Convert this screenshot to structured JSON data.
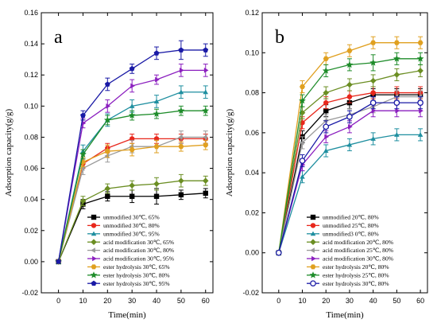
{
  "chart_data": [
    {
      "type": "line",
      "panel_label": "a",
      "xlabel": "Time(min)",
      "ylabel": "Adsorption capacity(g/g)",
      "xlim": [
        -7,
        63
      ],
      "ylim": [
        -0.02,
        0.16
      ],
      "xticks": [
        0,
        10,
        20,
        30,
        40,
        50,
        60
      ],
      "yticks": [
        -0.02,
        0.0,
        0.02,
        0.04,
        0.06,
        0.08,
        0.1,
        0.12,
        0.14,
        0.16
      ],
      "ytick_labels": [
        "-0.02",
        "0.00",
        "0.02",
        "0.04",
        "0.06",
        "0.08",
        "0.10",
        "0.12",
        "0.14",
        "0.16"
      ],
      "x": [
        0,
        10,
        20,
        30,
        40,
        50,
        60
      ],
      "legend_position": "bottom-center",
      "error_bars": true,
      "series": [
        {
          "name": "unmodified 30℃, 65%",
          "color": "#000000",
          "marker": "square",
          "values": [
            0.0,
            0.037,
            0.042,
            0.042,
            0.042,
            0.043,
            0.044
          ],
          "errors": [
            0,
            0.003,
            0.003,
            0.004,
            0.005,
            0.003,
            0.003
          ]
        },
        {
          "name": "unmodified 30℃, 80%",
          "color": "#e8271c",
          "marker": "circle",
          "values": [
            0.0,
            0.063,
            0.073,
            0.079,
            0.079,
            0.079,
            0.079
          ],
          "errors": [
            0,
            0.003,
            0.003,
            0.003,
            0.003,
            0.003,
            0.003
          ]
        },
        {
          "name": "unmodified 30℃, 95%",
          "color": "#1f8fa0",
          "marker": "triangle",
          "values": [
            0.0,
            0.071,
            0.091,
            0.1,
            0.103,
            0.109,
            0.109
          ],
          "errors": [
            0,
            0.004,
            0.004,
            0.004,
            0.004,
            0.004,
            0.004
          ]
        },
        {
          "name": "acid modification 30℃, 65%",
          "color": "#6b8e23",
          "marker": "diamond",
          "values": [
            0.0,
            0.039,
            0.047,
            0.049,
            0.05,
            0.052,
            0.052
          ],
          "errors": [
            0,
            0.003,
            0.003,
            0.003,
            0.004,
            0.004,
            0.003
          ]
        },
        {
          "name": "acid modification 30℃, 80%",
          "color": "#9a9a9a",
          "marker": "triangle-left",
          "values": [
            0.0,
            0.06,
            0.068,
            0.074,
            0.074,
            0.08,
            0.08
          ],
          "errors": [
            0,
            0.004,
            0.004,
            0.004,
            0.004,
            0.004,
            0.004
          ]
        },
        {
          "name": "acid modification 30℃, 95%",
          "color": "#8b1fbf",
          "marker": "triangle-right",
          "values": [
            0.0,
            0.089,
            0.1,
            0.113,
            0.117,
            0.123,
            0.123
          ],
          "errors": [
            0,
            0.003,
            0.004,
            0.004,
            0.003,
            0.004,
            0.004
          ]
        },
        {
          "name": "ester hydrolysis 30℃, 65%",
          "color": "#e0a020",
          "marker": "hexagon",
          "values": [
            0.0,
            0.064,
            0.071,
            0.072,
            0.074,
            0.074,
            0.075
          ],
          "errors": [
            0,
            0.003,
            0.004,
            0.004,
            0.004,
            0.003,
            0.003
          ]
        },
        {
          "name": "ester hydrolysis 30℃, 80%",
          "color": "#1e8c2a",
          "marker": "star",
          "values": [
            0.0,
            0.069,
            0.091,
            0.094,
            0.095,
            0.097,
            0.097
          ],
          "errors": [
            0,
            0.003,
            0.003,
            0.003,
            0.003,
            0.003,
            0.003
          ]
        },
        {
          "name": "ester hydrolysis 30℃, 95%",
          "color": "#1a1aa6",
          "marker": "pentagon",
          "values": [
            0.0,
            0.094,
            0.114,
            0.124,
            0.134,
            0.136,
            0.136
          ],
          "errors": [
            0,
            0.003,
            0.004,
            0.003,
            0.004,
            0.006,
            0.004
          ]
        }
      ]
    },
    {
      "type": "line",
      "panel_label": "b",
      "xlabel": "Time(min)",
      "ylabel": "Adsorption capacity(g/g)",
      "xlim": [
        -7,
        63
      ],
      "ylim": [
        -0.02,
        0.12
      ],
      "xticks": [
        0,
        10,
        20,
        30,
        40,
        50,
        60
      ],
      "yticks": [
        -0.02,
        0.0,
        0.02,
        0.04,
        0.06,
        0.08,
        0.1,
        0.12
      ],
      "ytick_labels": [
        "-0.02",
        "0.00",
        "0.02",
        "0.04",
        "0.06",
        "0.08",
        "0.10",
        "0.12"
      ],
      "x": [
        0,
        10,
        20,
        30,
        40,
        50,
        60
      ],
      "legend_position": "bottom-center",
      "error_bars": true,
      "series": [
        {
          "name": "unmodified 20℃, 80%",
          "color": "#000000",
          "marker": "square",
          "values": [
            0.0,
            0.058,
            0.071,
            0.075,
            0.079,
            0.079,
            0.079
          ],
          "errors": [
            0,
            0.003,
            0.003,
            0.003,
            0.003,
            0.003,
            0.003
          ]
        },
        {
          "name": "unmodified 25℃, 80%",
          "color": "#e8271c",
          "marker": "circle",
          "values": [
            0.0,
            0.065,
            0.075,
            0.078,
            0.08,
            0.08,
            0.08
          ],
          "errors": [
            0,
            0.003,
            0.003,
            0.003,
            0.003,
            0.003,
            0.003
          ]
        },
        {
          "name": "unmodified3 0℃, 80%",
          "color": "#1f8fa0",
          "marker": "triangle",
          "values": [
            0.0,
            0.038,
            0.051,
            0.054,
            0.057,
            0.059,
            0.059
          ],
          "errors": [
            0,
            0.003,
            0.003,
            0.003,
            0.003,
            0.003,
            0.003
          ]
        },
        {
          "name": "acid modification 20℃, 80%",
          "color": "#6b8e23",
          "marker": "diamond",
          "values": [
            0.0,
            0.07,
            0.08,
            0.084,
            0.086,
            0.089,
            0.091
          ],
          "errors": [
            0,
            0.003,
            0.003,
            0.003,
            0.003,
            0.003,
            0.003
          ]
        },
        {
          "name": "acid modification 25℃, 80%",
          "color": "#9a9a9a",
          "marker": "triangle-left",
          "values": [
            0.0,
            0.055,
            0.066,
            0.069,
            0.073,
            0.078,
            0.078
          ],
          "errors": [
            0,
            0.003,
            0.003,
            0.003,
            0.003,
            0.003,
            0.003
          ]
        },
        {
          "name": "acid modification 30℃, 80%",
          "color": "#8b1fbf",
          "marker": "triangle-right",
          "values": [
            0.0,
            0.044,
            0.058,
            0.063,
            0.071,
            0.071,
            0.071
          ],
          "errors": [
            0,
            0.003,
            0.003,
            0.003,
            0.003,
            0.003,
            0.003
          ]
        },
        {
          "name": "ester hydrolysis 20℃, 80%",
          "color": "#e0a020",
          "marker": "hexagon",
          "values": [
            0.0,
            0.083,
            0.097,
            0.101,
            0.105,
            0.105,
            0.105
          ],
          "errors": [
            0,
            0.003,
            0.003,
            0.003,
            0.003,
            0.003,
            0.003
          ]
        },
        {
          "name": "ester hydrolysis 25℃, 80%",
          "color": "#1e8c2a",
          "marker": "star",
          "values": [
            0.0,
            0.076,
            0.091,
            0.094,
            0.095,
            0.097,
            0.097
          ],
          "errors": [
            0,
            0.003,
            0.003,
            0.003,
            0.004,
            0.003,
            0.003
          ]
        },
        {
          "name": "ester hydrolysis 30℃, 80%",
          "color": "#1a1aa6",
          "marker": "circle-open",
          "values": [
            0.0,
            0.046,
            0.063,
            0.068,
            0.075,
            0.075,
            0.075
          ],
          "errors": [
            0,
            0.003,
            0.003,
            0.003,
            0.003,
            0.003,
            0.003
          ]
        }
      ]
    }
  ]
}
